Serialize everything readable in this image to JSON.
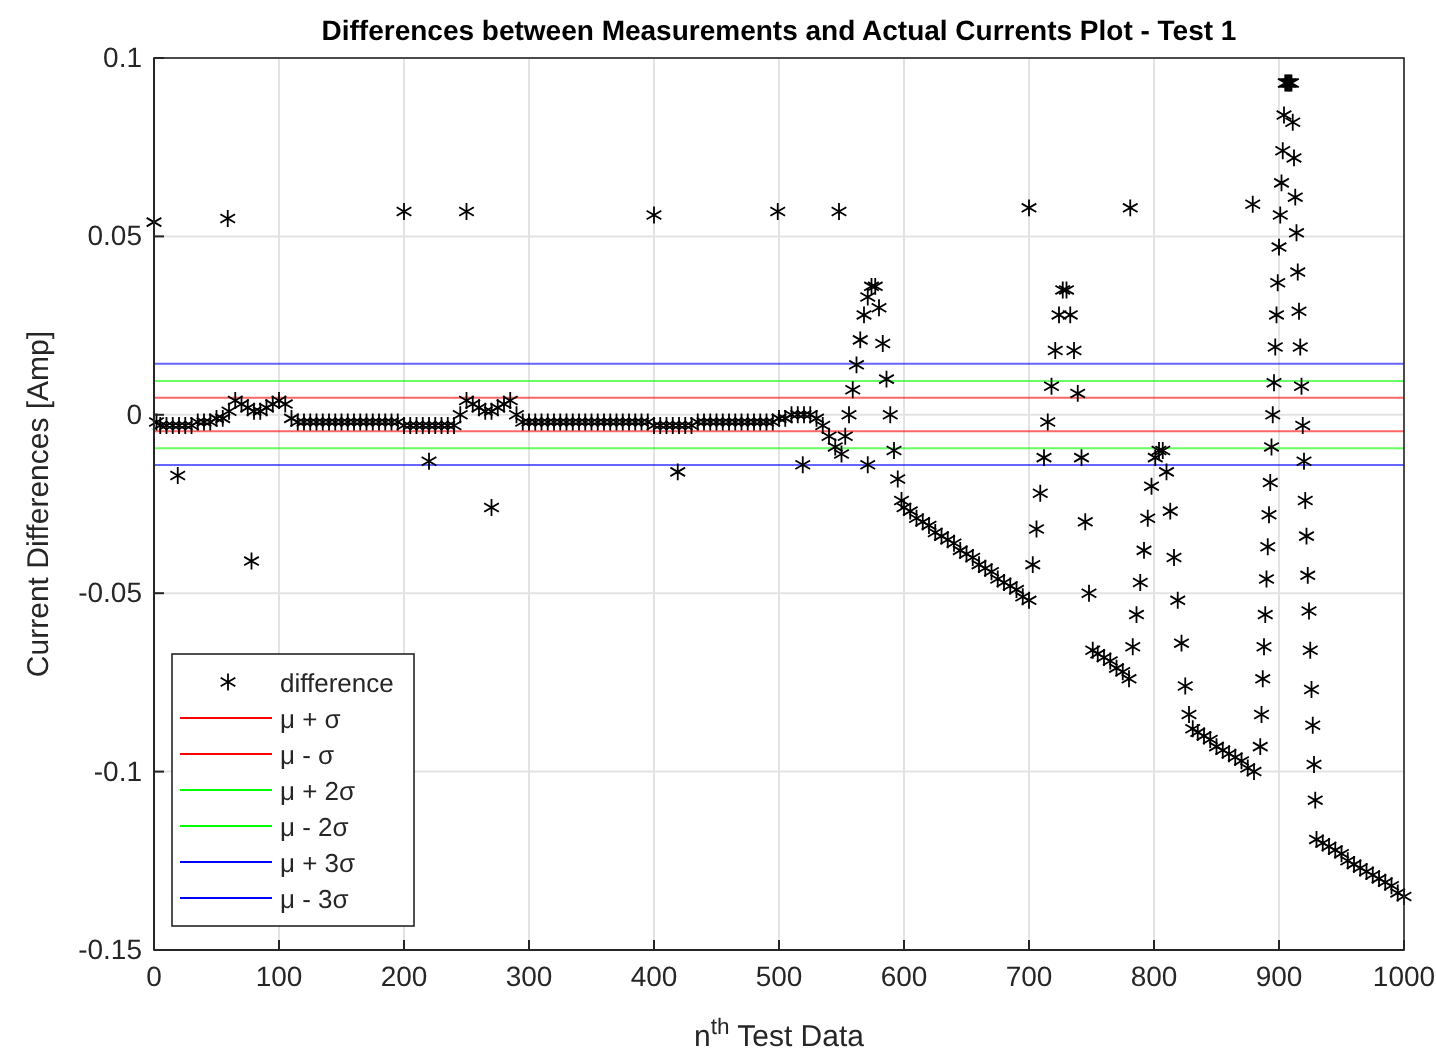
{
  "chart_data": {
    "type": "scatter",
    "title": "Differences between Measurements and Actual Currents Plot - Test 1",
    "xlabel": "n$^{th}$ Test Data",
    "ylabel": "Current Differences [Amp]",
    "xlim": [
      0,
      1000
    ],
    "xticks": [
      0,
      100,
      200,
      300,
      400,
      500,
      600,
      700,
      800,
      900,
      1000
    ],
    "ylim": [
      -0.15,
      0.1
    ],
    "yticks": [
      -0.15,
      -0.1,
      -0.05,
      0,
      0.05,
      0.1
    ],
    "grid": true,
    "legend": "bottom left",
    "marker": "cross",
    "series": [
      {
        "name": "difference",
        "color": "#000000",
        "x": [
          2,
          5,
          10,
          15,
          20,
          25,
          30,
          35,
          40,
          45,
          50,
          55,
          60,
          65,
          70,
          75,
          80,
          85,
          90,
          95,
          100,
          105,
          110,
          115,
          120,
          125,
          130,
          135,
          140,
          145,
          150,
          155,
          160,
          165,
          170,
          175,
          180,
          185,
          190,
          195,
          200,
          205,
          210,
          215,
          220,
          225,
          230,
          235,
          240,
          245,
          250,
          255,
          260,
          265,
          270,
          275,
          280,
          285,
          290,
          295,
          300,
          305,
          310,
          315,
          320,
          325,
          330,
          335,
          340,
          345,
          350,
          355,
          360,
          365,
          370,
          375,
          380,
          385,
          390,
          395,
          400,
          405,
          410,
          415,
          420,
          425,
          430,
          435,
          440,
          445,
          450,
          455,
          460,
          465,
          470,
          475,
          480,
          485,
          490,
          495,
          500,
          505,
          510,
          515,
          520,
          525,
          530,
          535,
          540,
          545,
          550,
          553,
          556,
          559,
          562,
          565,
          568,
          571,
          574,
          577,
          580,
          583,
          586,
          589,
          592,
          595,
          598,
          600,
          605,
          610,
          615,
          620,
          625,
          630,
          635,
          640,
          645,
          650,
          655,
          660,
          665,
          670,
          675,
          680,
          685,
          690,
          695,
          700,
          703,
          706,
          709,
          712,
          715,
          718,
          721,
          724,
          727,
          730,
          733,
          736,
          739,
          742,
          745,
          748,
          751,
          755,
          760,
          765,
          770,
          775,
          780,
          783,
          786,
          789,
          792,
          795,
          798,
          801,
          804,
          807,
          810,
          813,
          816,
          819,
          822,
          825,
          828,
          831,
          835,
          840,
          845,
          850,
          855,
          860,
          865,
          870,
          875,
          880,
          885,
          886,
          887,
          888,
          889,
          890,
          891,
          892,
          893,
          894,
          895,
          896,
          897,
          898,
          899,
          900,
          901,
          902,
          903,
          904,
          905,
          906,
          907,
          908,
          909,
          910,
          911,
          912,
          913,
          914,
          915,
          916,
          917,
          918,
          919,
          920,
          921,
          922,
          923,
          924,
          925,
          926,
          927,
          928,
          929,
          930,
          935,
          940,
          945,
          950,
          955,
          960,
          965,
          970,
          975,
          980,
          985,
          990,
          995,
          1000,
          0,
          19,
          59,
          78,
          200,
          220,
          250,
          270,
          400,
          419,
          499,
          519,
          548,
          571,
          700,
          781,
          879
        ],
        "values": [
          -0.002,
          -0.003,
          -0.003,
          -0.003,
          -0.003,
          -0.003,
          -0.003,
          -0.002,
          -0.002,
          -0.002,
          -0.001,
          -0.001,
          0.001,
          0.004,
          0.003,
          0.002,
          0.001,
          0.001,
          0.002,
          0.003,
          0.004,
          0.003,
          -0.001,
          -0.002,
          -0.002,
          -0.002,
          -0.002,
          -0.002,
          -0.002,
          -0.002,
          -0.002,
          -0.002,
          -0.002,
          -0.002,
          -0.002,
          -0.002,
          -0.002,
          -0.002,
          -0.002,
          -0.002,
          -0.003,
          -0.003,
          -0.003,
          -0.003,
          -0.003,
          -0.003,
          -0.003,
          -0.003,
          -0.003,
          0.0,
          0.004,
          0.003,
          0.002,
          0.001,
          0.001,
          0.002,
          0.003,
          0.004,
          0.0,
          -0.002,
          -0.002,
          -0.002,
          -0.002,
          -0.002,
          -0.002,
          -0.002,
          -0.002,
          -0.002,
          -0.002,
          -0.002,
          -0.002,
          -0.002,
          -0.002,
          -0.002,
          -0.002,
          -0.002,
          -0.002,
          -0.002,
          -0.002,
          -0.002,
          -0.003,
          -0.003,
          -0.003,
          -0.003,
          -0.003,
          -0.003,
          -0.003,
          -0.002,
          -0.002,
          -0.002,
          -0.002,
          -0.002,
          -0.002,
          -0.002,
          -0.002,
          -0.002,
          -0.002,
          -0.002,
          -0.002,
          -0.002,
          -0.001,
          -0.001,
          0.0,
          0.0,
          0.0,
          0.0,
          -0.001,
          -0.003,
          -0.006,
          -0.009,
          -0.011,
          -0.006,
          0.0,
          0.007,
          0.014,
          0.021,
          0.028,
          0.033,
          0.036,
          0.036,
          0.03,
          0.02,
          0.01,
          0.0,
          -0.01,
          -0.018,
          -0.024,
          -0.026,
          -0.027,
          -0.029,
          -0.03,
          -0.031,
          -0.033,
          -0.034,
          -0.035,
          -0.036,
          -0.038,
          -0.039,
          -0.04,
          -0.042,
          -0.043,
          -0.044,
          -0.046,
          -0.047,
          -0.048,
          -0.049,
          -0.051,
          -0.052,
          -0.042,
          -0.032,
          -0.022,
          -0.012,
          -0.002,
          0.008,
          0.018,
          0.028,
          0.035,
          0.035,
          0.028,
          0.018,
          0.006,
          -0.012,
          -0.03,
          -0.05,
          -0.066,
          -0.067,
          -0.068,
          -0.069,
          -0.071,
          -0.072,
          -0.074,
          -0.065,
          -0.056,
          -0.047,
          -0.038,
          -0.029,
          -0.02,
          -0.012,
          -0.01,
          -0.01,
          -0.016,
          -0.027,
          -0.04,
          -0.052,
          -0.064,
          -0.076,
          -0.084,
          -0.088,
          -0.089,
          -0.09,
          -0.091,
          -0.093,
          -0.094,
          -0.095,
          -0.096,
          -0.097,
          -0.099,
          -0.1,
          -0.093,
          -0.084,
          -0.074,
          -0.065,
          -0.056,
          -0.046,
          -0.037,
          -0.028,
          -0.019,
          -0.009,
          0.0,
          0.009,
          0.019,
          0.028,
          0.037,
          0.047,
          0.056,
          0.065,
          0.074,
          0.084,
          0.093,
          0.093,
          0.093,
          0.093,
          0.093,
          0.093,
          0.082,
          0.072,
          0.061,
          0.051,
          0.04,
          0.029,
          0.019,
          0.008,
          -0.003,
          -0.013,
          -0.024,
          -0.034,
          -0.045,
          -0.055,
          -0.066,
          -0.077,
          -0.087,
          -0.098,
          -0.108,
          -0.119,
          -0.12,
          -0.121,
          -0.122,
          -0.123,
          -0.125,
          -0.126,
          -0.127,
          -0.128,
          -0.129,
          -0.13,
          -0.131,
          -0.132,
          -0.134,
          -0.135,
          0.054,
          -0.017,
          0.055,
          -0.041,
          0.057,
          -0.013,
          0.057,
          -0.026,
          0.056,
          -0.016,
          0.057,
          -0.014,
          0.057,
          -0.014,
          0.058,
          0.058,
          0.059
        ]
      }
    ],
    "ref_lines": [
      {
        "axis": "y",
        "value": 0.0048,
        "label": "μ + σ",
        "color": "#ff0000"
      },
      {
        "axis": "y",
        "value": -0.0046,
        "label": "μ - σ",
        "color": "#ff0000"
      },
      {
        "axis": "y",
        "value": 0.0095,
        "label": "μ + 2σ",
        "color": "#00ff00"
      },
      {
        "axis": "y",
        "value": -0.0094,
        "label": "μ - 2σ",
        "color": "#00ff00"
      },
      {
        "axis": "y",
        "value": 0.0143,
        "label": "μ + 3σ",
        "color": "#0000ff"
      },
      {
        "axis": "y",
        "value": -0.0141,
        "label": "μ - 3σ",
        "color": "#0000ff"
      }
    ]
  }
}
